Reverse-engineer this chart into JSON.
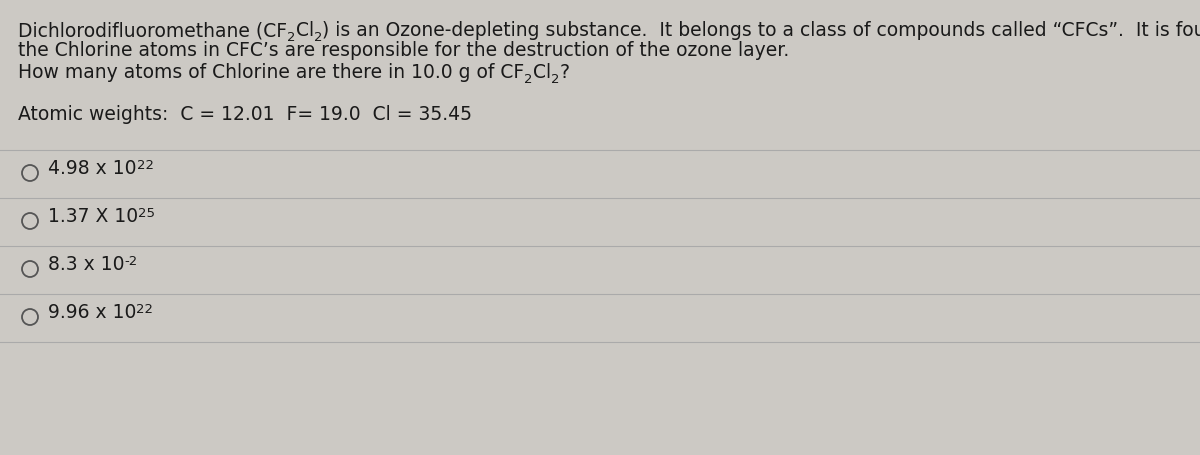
{
  "background_color": "#ccc9c4",
  "text_color": "#1a1a1a",
  "divider_color": "#aaaaaa",
  "circle_color": "#555555",
  "font_size_main": 13.5,
  "font_size_small": 9.5,
  "line1_normal": "Dichlorodifluoromethane (CF",
  "line1_sub1": "2",
  "line1_mid": "Cl",
  "line1_sub2": "2",
  "line1_end": ") is an Ozone-depleting substance.  It belongs to a class of compounds called “CFCs”.  It is found that",
  "line2": "the Chlorine atoms in CFC’s are responsible for the destruction of the ozone layer.",
  "q_start": "How many atoms of Chlorine are there in 10.0 g of CF",
  "q_sub1": "2",
  "q_mid": "Cl",
  "q_sub2": "2",
  "q_end": "?",
  "atomic": "Atomic weights:  C = 12.01  F= 19.0  Cl = 35.45",
  "opt1_main": "4.98 x 10",
  "opt1_sup": "22",
  "opt2_main": "1.37 X 10",
  "opt2_sup": "25",
  "opt3_main": "8.3 x 10",
  "opt3_sup": "-2",
  "opt4_main": "9.96 x 10",
  "opt4_sup": "22"
}
